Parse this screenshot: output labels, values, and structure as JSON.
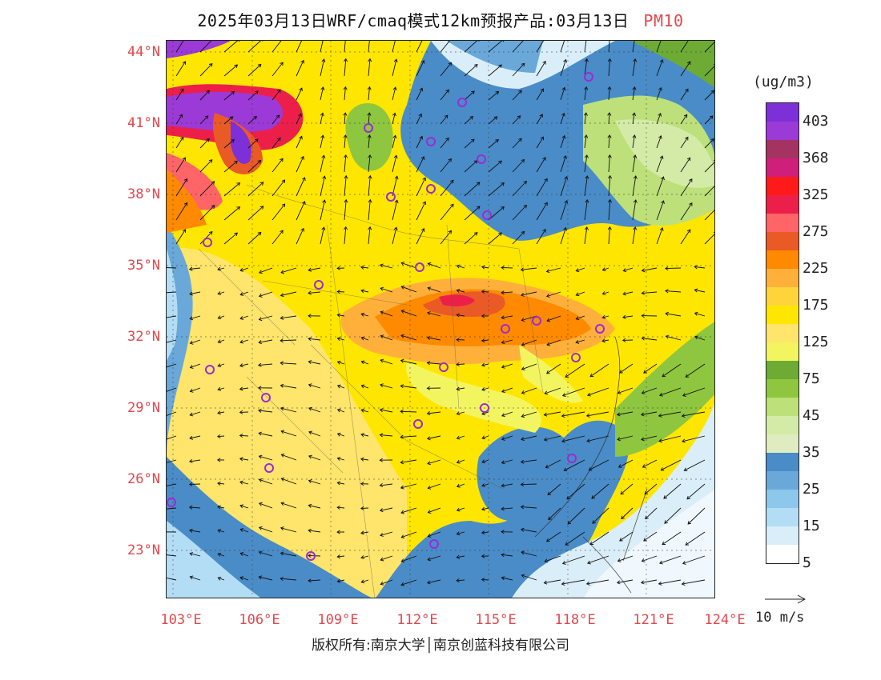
{
  "header": {
    "title": "2025年03月13日WRF/cmaq模式12km预报产品:03月13日",
    "product": "PM10"
  },
  "map": {
    "lat_labels": [
      "44°N",
      "41°N",
      "38°N",
      "35°N",
      "32°N",
      "29°N",
      "26°N",
      "23°N"
    ],
    "lon_labels": [
      "103°E",
      "106°E",
      "109°E",
      "112°E",
      "115°E",
      "118°E",
      "121°E",
      "124°E"
    ]
  },
  "legend": {
    "unit": "(ug/m3)",
    "labels": [
      "403",
      "368",
      "325",
      "275",
      "225",
      "175",
      "125",
      "75",
      "45",
      "35",
      "25",
      "15",
      "5"
    ],
    "colors": [
      "#7d2fd8",
      "#9b3ad6",
      "#a53362",
      "#cf1f7a",
      "#ff1a1a",
      "#ec1f4b",
      "#ff6466",
      "#e95a27",
      "#ff8a00",
      "#ffb03b",
      "#ffd43b",
      "#ffe600",
      "#ffe56b",
      "#f3f560",
      "#6dab35",
      "#8ec640",
      "#bde07a",
      "#d4eba8",
      "#dfecbf",
      "#4a8cc7",
      "#6aa8d9",
      "#8dc7ec",
      "#b3ddf5",
      "#d9eef9",
      "#ffffff"
    ],
    "wind_ref": "10 m/s"
  },
  "footer": {
    "copyright": "版权所有:南京大学│南京创蓝科技有限公司"
  }
}
